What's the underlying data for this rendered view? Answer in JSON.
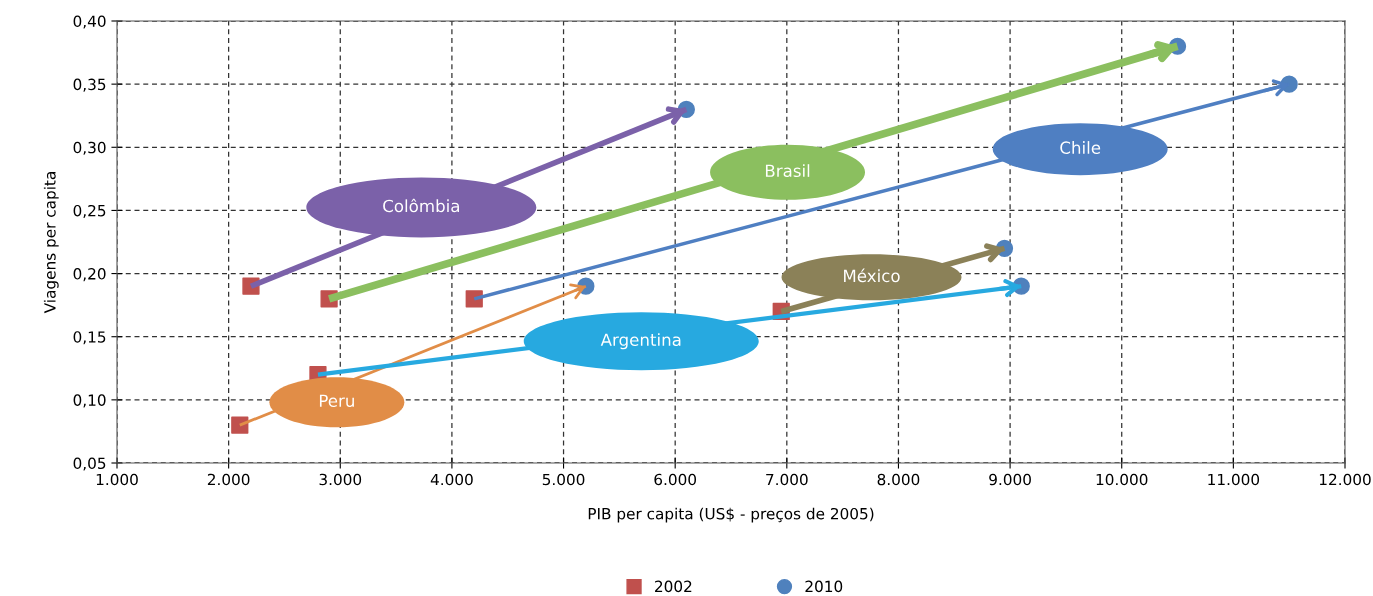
{
  "chart_data": {
    "type": "scatter",
    "xlabel": "PIB per capita (US$ - preços de 2005)",
    "ylabel": "Viagens per capita",
    "series": [
      {
        "name": "2002",
        "color": "#c0504d",
        "marker": "square",
        "x": [
          2200,
          2900,
          4200,
          2100,
          2800,
          6950
        ],
        "values": [
          0.19,
          0.18,
          0.18,
          0.08,
          0.12,
          0.17
        ]
      },
      {
        "name": "2010",
        "color": "#4f81bd",
        "marker": "circle",
        "x": [
          6100,
          10500,
          11500,
          5200,
          9100,
          8950
        ],
        "values": [
          0.33,
          0.38,
          0.35,
          0.19,
          0.19,
          0.22
        ]
      },
      {
        "name": "Colômbia",
        "type": "line",
        "color": "#7b61a9",
        "marker": "none",
        "x": [
          2200,
          6100
        ],
        "values": [
          0.19,
          0.33
        ]
      },
      {
        "name": "Brasil",
        "type": "line",
        "color": "#8bbf5f",
        "marker": "none",
        "x": [
          2900,
          10500
        ],
        "values": [
          0.18,
          0.38
        ]
      },
      {
        "name": "Chile",
        "type": "line",
        "color": "#4f7fc2",
        "marker": "none",
        "x": [
          4200,
          11500
        ],
        "values": [
          0.18,
          0.35
        ]
      },
      {
        "name": "Peru",
        "type": "line",
        "color": "#e18d47",
        "marker": "none",
        "x": [
          2100,
          5200
        ],
        "values": [
          0.08,
          0.19
        ]
      },
      {
        "name": "Argentina",
        "type": "line",
        "color": "#27a9e0",
        "marker": "none",
        "x": [
          2800,
          9100
        ],
        "values": [
          0.12,
          0.19
        ]
      },
      {
        "name": "México",
        "type": "line",
        "color": "#8b8158",
        "marker": "none",
        "x": [
          6950,
          8950
        ],
        "values": [
          0.17,
          0.22
        ]
      }
    ],
    "xlim": [
      1000,
      12000
    ],
    "xticks": [
      {
        "value": 1000,
        "label": "1.000"
      },
      {
        "value": 2000,
        "label": "2.000"
      },
      {
        "value": 3000,
        "label": "3.000"
      },
      {
        "value": 4000,
        "label": "4.000"
      },
      {
        "value": 5000,
        "label": "5.000"
      },
      {
        "value": 6000,
        "label": "6.000"
      },
      {
        "value": 7000,
        "label": "7.000"
      },
      {
        "value": 8000,
        "label": "8.000"
      },
      {
        "value": 9000,
        "label": "9.000"
      },
      {
        "value": 10000,
        "label": "10.000"
      },
      {
        "value": 11000,
        "label": "11.000"
      },
      {
        "value": 12000,
        "label": "12.000"
      }
    ],
    "ylim": [
      0.05,
      0.4
    ],
    "yticks": [
      {
        "value": 0.05,
        "label": "0,05"
      },
      {
        "value": 0.1,
        "label": "0,10"
      },
      {
        "value": 0.15,
        "label": "0,15"
      },
      {
        "value": 0.2,
        "label": "0,20"
      },
      {
        "value": 0.25,
        "label": "0,25"
      },
      {
        "value": 0.3,
        "label": "0,30"
      },
      {
        "value": 0.35,
        "label": "0,35"
      },
      {
        "value": 0.4,
        "label": "0,40"
      }
    ],
    "grid": true,
    "legend": "bottom"
  }
}
